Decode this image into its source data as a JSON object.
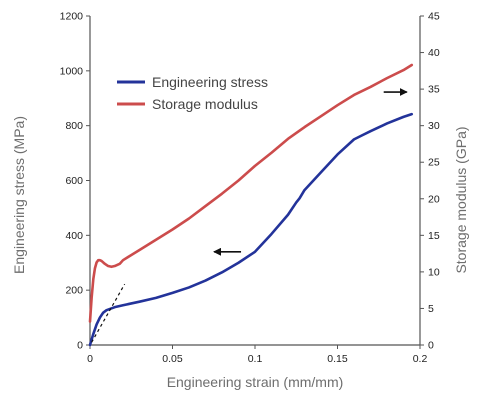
{
  "chart_data": {
    "type": "line",
    "xlabel": "Engineering strain (mm/mm)",
    "ylabel_left": "Engineering stress (MPa)",
    "ylabel_right": "Storage modulus (GPa)",
    "xlim": [
      0,
      0.2
    ],
    "ylim_left": [
      0,
      1200
    ],
    "ylim_right": [
      0,
      45
    ],
    "x_ticks": [
      0,
      0.05,
      0.1,
      0.15,
      0.2
    ],
    "x_tick_labels": [
      "0",
      "0.05",
      "0.1",
      "0.15",
      "0.2"
    ],
    "y_left_ticks": [
      0,
      200,
      400,
      600,
      800,
      1000,
      1200
    ],
    "y_left_tick_labels": [
      "0",
      "200",
      "400",
      "600",
      "800",
      "1000",
      "1200"
    ],
    "y_right_ticks": [
      0,
      5,
      10,
      15,
      20,
      25,
      30,
      35,
      40,
      45
    ],
    "y_right_tick_labels": [
      "0",
      "5",
      "10",
      "15",
      "20",
      "25",
      "30",
      "35",
      "40",
      "45"
    ],
    "grid": false,
    "legend_position": "upper-left",
    "colors": {
      "engineering_stress": "#23339a",
      "storage_modulus": "#cc4c4c",
      "axis": "#555555",
      "tangent": "#111111",
      "arrow": "#111111"
    },
    "series": [
      {
        "name": "Engineering stress",
        "axis": "left",
        "x": [
          0,
          0.002,
          0.004,
          0.006,
          0.008,
          0.01,
          0.015,
          0.02,
          0.03,
          0.04,
          0.05,
          0.06,
          0.07,
          0.08,
          0.09,
          0.1,
          0.11,
          0.12,
          0.125,
          0.127,
          0.13,
          0.14,
          0.15,
          0.16,
          0.165,
          0.17,
          0.18,
          0.19,
          0.195
        ],
        "y": [
          0,
          40,
          75,
          100,
          118,
          127,
          138,
          145,
          158,
          172,
          190,
          210,
          235,
          265,
          300,
          340,
          405,
          475,
          520,
          535,
          565,
          630,
          695,
          750,
          765,
          780,
          808,
          832,
          842
        ]
      },
      {
        "name": "Storage modulus",
        "axis": "right",
        "x": [
          0,
          0.001,
          0.002,
          0.003,
          0.004,
          0.005,
          0.006,
          0.007,
          0.009,
          0.011,
          0.013,
          0.015,
          0.018,
          0.02,
          0.03,
          0.04,
          0.05,
          0.06,
          0.07,
          0.08,
          0.09,
          0.1,
          0.11,
          0.12,
          0.13,
          0.14,
          0.15,
          0.16,
          0.17,
          0.18,
          0.19,
          0.195
        ],
        "y": [
          3.2,
          6.5,
          9.0,
          10.5,
          11.3,
          11.6,
          11.6,
          11.5,
          11.1,
          10.8,
          10.7,
          10.8,
          11.1,
          11.6,
          13.0,
          14.4,
          15.8,
          17.3,
          19.0,
          20.7,
          22.5,
          24.5,
          26.3,
          28.2,
          29.8,
          31.3,
          32.8,
          34.2,
          35.3,
          36.5,
          37.6,
          38.3
        ]
      }
    ],
    "annotations": [
      {
        "type": "tangent_line",
        "axis": "left",
        "x": [
          0.001,
          0.021
        ],
        "y": [
          10,
          222
        ],
        "style": "dashed"
      },
      {
        "type": "arrow",
        "axis": "left",
        "direction": "left",
        "points_to": "Engineering stress",
        "x": [
          0.077,
          0.076
        ],
        "y": [
          340,
          340
        ]
      },
      {
        "type": "arrow",
        "axis": "right",
        "direction": "right",
        "points_to": "Storage modulus",
        "x": [
          0.178,
          0.192
        ],
        "y": [
          34.6,
          34.6
        ]
      }
    ]
  }
}
